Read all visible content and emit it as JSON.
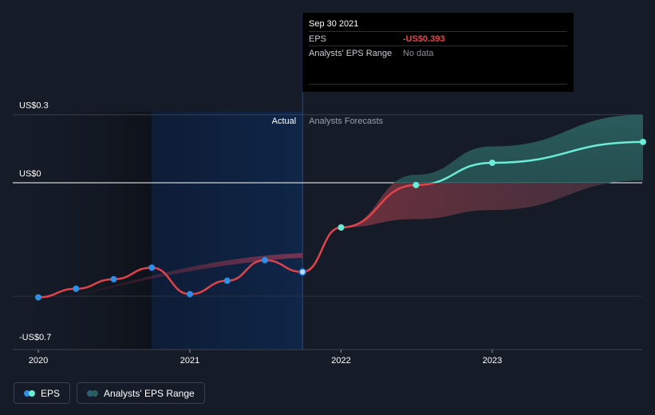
{
  "tooltip": {
    "date": "Sep 30 2021",
    "rows": [
      {
        "label": "EPS",
        "value": "-US$0.393"
      },
      {
        "label": "Analysts' EPS Range",
        "value": "No data"
      }
    ]
  },
  "legend": {
    "eps": "EPS",
    "range": "Analysts' EPS Range"
  },
  "colors": {
    "background": "#151b27",
    "actual_region": "#0e2240",
    "eps_line": "#e0434a",
    "eps_point": "#2f8fe6",
    "forecast_line": "#6cecd6",
    "forecast_band": "#2b5d5c",
    "range_band_negative": "#6b2b3a"
  },
  "chart_data": {
    "type": "line",
    "y_axis_labels": [
      "US$0.3",
      "US$0",
      "-US$0.7"
    ],
    "x_axis_labels": [
      "2020",
      "2021",
      "2022",
      "2023"
    ],
    "section_labels": {
      "actual": "Actual",
      "forecast": "Analysts Forecasts"
    },
    "ylim": [
      -0.7,
      0.3
    ],
    "divider_date": "2021-09-30",
    "series": [
      {
        "name": "EPS",
        "kind": "actual",
        "points": [
          {
            "x": "2020-01-01",
            "y": -0.505
          },
          {
            "x": "2020-04-01",
            "y": -0.467
          },
          {
            "x": "2020-07-01",
            "y": -0.425
          },
          {
            "x": "2020-10-01",
            "y": -0.374
          },
          {
            "x": "2021-01-01",
            "y": -0.491
          },
          {
            "x": "2021-04-01",
            "y": -0.432
          },
          {
            "x": "2021-07-01",
            "y": -0.341
          },
          {
            "x": "2021-09-30",
            "y": -0.393
          }
        ]
      },
      {
        "name": "EPS",
        "kind": "forecast",
        "points": [
          {
            "x": "2021-09-30",
            "y": -0.393
          },
          {
            "x": "2022-01-01",
            "y": -0.197
          },
          {
            "x": "2022-07-01",
            "y": -0.01
          },
          {
            "x": "2023-01-01",
            "y": 0.088
          },
          {
            "x": "2023-12-31",
            "y": 0.18
          }
        ]
      }
    ],
    "range_band": [
      {
        "x": "2022-01-01",
        "low": -0.197,
        "high": -0.197
      },
      {
        "x": "2022-07-01",
        "low": -0.16,
        "high": 0.035
      },
      {
        "x": "2023-01-01",
        "low": -0.12,
        "high": 0.16
      },
      {
        "x": "2023-12-31",
        "low": 0.01,
        "high": 0.3
      }
    ]
  }
}
